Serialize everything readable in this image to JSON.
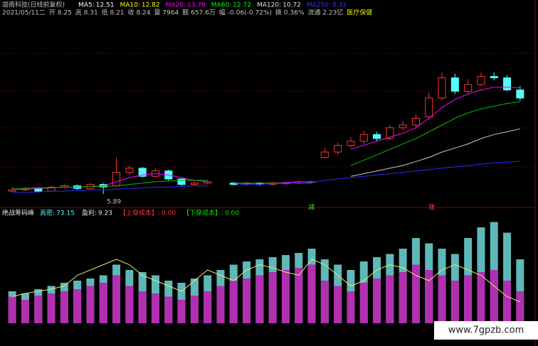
{
  "header": {
    "title": "迦南科技(日线前复权)",
    "ma": [
      {
        "label": "MA5:",
        "value": 12.51,
        "color": "#ffffff"
      },
      {
        "label": "MA10:",
        "value": 12.82,
        "color": "#ffff00"
      },
      {
        "label": "MA20:",
        "value": 13.76,
        "color": "#ff00ff"
      },
      {
        "label": "MA60:",
        "value": 12.72,
        "color": "#00ff00"
      },
      {
        "label": "MA120:",
        "value": 10.72,
        "color": "#e0e0e0"
      },
      {
        "label": "MA250:",
        "value": 8.32,
        "color": "#3030ff"
      }
    ]
  },
  "info": [
    "2021/05/11二",
    "开 8.25",
    "高 8.31",
    "低 8.21",
    "收 8.24",
    "量 7964",
    "额 657.6万",
    "幅 -0.06(-0.72%)",
    "换 0.36%",
    "流通 2.23亿",
    "医疗保健"
  ],
  "chart_data": [
    {
      "type": "candlestick",
      "up_color": "#ff3232",
      "down_color": "#54fcfc",
      "ylim": [
        5,
        15
      ],
      "open": [
        6.1,
        6.2,
        6.3,
        6.1,
        6.4,
        6.5,
        6.3,
        6.6,
        6.5,
        7.5,
        7.8,
        7.2,
        7.6,
        7.0,
        6.6,
        6.7,
        null,
        6.7,
        6.6,
        6.7,
        6.6,
        6.7,
        6.7,
        6.8,
        8.6,
        9.0,
        9.5,
        9.8,
        10.3,
        10.0,
        10.8,
        11.0,
        11.6,
        13.0,
        14.5,
        13.5,
        14.0,
        14.6,
        14.5,
        13.6
      ],
      "close": [
        6.2,
        6.3,
        6.1,
        6.4,
        6.5,
        6.3,
        6.6,
        6.4,
        7.5,
        7.8,
        7.2,
        7.6,
        7.0,
        6.6,
        6.7,
        6.8,
        null,
        6.6,
        6.7,
        6.6,
        6.7,
        6.7,
        6.8,
        6.8,
        9.0,
        9.5,
        9.8,
        10.3,
        10.0,
        10.8,
        11.0,
        11.5,
        13.0,
        14.5,
        13.5,
        14.0,
        14.6,
        14.5,
        13.6,
        13.0
      ],
      "high": [
        6.4,
        6.4,
        6.4,
        6.5,
        6.6,
        6.6,
        6.7,
        6.7,
        8.6,
        8.0,
        7.9,
        7.8,
        7.7,
        7.1,
        6.8,
        6.9,
        null,
        6.8,
        6.8,
        6.8,
        6.8,
        6.8,
        6.9,
        6.9,
        9.3,
        9.7,
        10.1,
        10.6,
        10.5,
        11.0,
        11.3,
        11.8,
        13.4,
        14.9,
        14.8,
        14.4,
        14.9,
        14.9,
        14.7,
        13.9
      ],
      "low": [
        6.0,
        6.1,
        6.0,
        6.0,
        6.3,
        6.2,
        6.2,
        5.89,
        6.4,
        7.3,
        7.1,
        7.1,
        6.9,
        6.5,
        6.5,
        6.6,
        null,
        6.5,
        6.5,
        6.5,
        6.5,
        6.6,
        6.6,
        6.7,
        8.5,
        8.8,
        9.3,
        9.6,
        9.8,
        9.9,
        10.6,
        10.8,
        11.4,
        12.8,
        13.3,
        13.3,
        13.9,
        14.3,
        13.5,
        12.8
      ],
      "series": [
        {
          "color": "#ff00ff",
          "values": [
            6.2,
            6.25,
            6.3,
            6.35,
            6.4,
            6.4,
            6.45,
            6.5,
            6.8,
            7.1,
            7.3,
            7.4,
            7.3,
            7.1,
            6.9,
            6.8,
            null,
            6.7,
            6.65,
            6.7,
            6.7,
            6.75,
            6.8,
            6.8,
            null,
            null,
            9.2,
            9.5,
            9.8,
            10.1,
            10.4,
            10.8,
            11.5,
            12.3,
            12.9,
            13.3,
            13.6,
            13.8,
            13.8,
            13.76
          ]
        },
        {
          "color": "#00c000",
          "values": [
            6.3,
            6.3,
            6.35,
            6.35,
            6.4,
            6.4,
            6.45,
            6.45,
            6.5,
            6.6,
            6.7,
            6.8,
            6.85,
            6.9,
            6.9,
            6.9,
            null,
            6.7,
            6.7,
            6.7,
            6.7,
            6.7,
            6.7,
            6.7,
            null,
            null,
            8.0,
            8.4,
            8.8,
            9.2,
            9.6,
            10.0,
            10.5,
            11.0,
            11.5,
            11.9,
            12.2,
            12.4,
            12.6,
            12.72
          ]
        },
        {
          "color": "#c8c8c8",
          "values": [
            null,
            null,
            null,
            null,
            null,
            null,
            null,
            null,
            null,
            null,
            null,
            null,
            null,
            null,
            null,
            null,
            null,
            null,
            null,
            null,
            null,
            null,
            null,
            null,
            null,
            null,
            7.2,
            7.4,
            7.6,
            7.8,
            8.0,
            8.3,
            8.6,
            9.0,
            9.3,
            9.6,
            10.0,
            10.3,
            10.5,
            10.72
          ]
        },
        {
          "color": "#2828ff",
          "values": [
            6.0,
            6.0,
            6.05,
            6.1,
            6.1,
            6.15,
            6.2,
            6.2,
            6.25,
            6.3,
            6.35,
            6.4,
            6.4,
            6.45,
            6.5,
            6.5,
            null,
            6.55,
            6.6,
            6.6,
            6.65,
            6.7,
            6.7,
            6.75,
            6.9,
            7.0,
            7.1,
            7.2,
            7.3,
            7.4,
            7.5,
            7.6,
            7.7,
            7.8,
            7.9,
            8.0,
            8.1,
            8.2,
            8.25,
            8.32
          ]
        }
      ],
      "annotations": [
        "5.89",
        "减",
        "涨"
      ]
    },
    {
      "type": "bar",
      "title": "绝战筹码峰",
      "ylim": [
        0,
        100
      ],
      "stats": [
        {
          "label": "高密:",
          "value": "73.15",
          "color": "#54fcfc"
        },
        {
          "label": "盈利:",
          "value": "9.23",
          "color": "#e0e0e0"
        },
        {
          "label": "【上穿成本】:",
          "value": "0.00",
          "color": "#ff3232"
        },
        {
          "label": "【下穿成本】:",
          "value": "0.00",
          "color": "#00e000"
        }
      ],
      "series": [
        {
          "type": "bar",
          "color": "#5fb8b8",
          "values": [
            30,
            28,
            32,
            35,
            38,
            40,
            42,
            45,
            55,
            50,
            48,
            45,
            40,
            38,
            42,
            45,
            50,
            55,
            58,
            60,
            62,
            64,
            66,
            70,
            60,
            55,
            50,
            58,
            62,
            65,
            70,
            80,
            75,
            70,
            65,
            80,
            90,
            95,
            85,
            60
          ]
        },
        {
          "type": "bar",
          "color": "#b030b0",
          "values": [
            25,
            22,
            26,
            28,
            30,
            32,
            35,
            38,
            45,
            35,
            30,
            28,
            25,
            22,
            26,
            30,
            35,
            40,
            42,
            45,
            48,
            50,
            52,
            55,
            40,
            35,
            30,
            38,
            42,
            45,
            48,
            55,
            50,
            45,
            40,
            45,
            48,
            50,
            40,
            30
          ]
        },
        {
          "type": "line",
          "color": "#e8e870",
          "values": [
            25,
            28,
            30,
            32,
            35,
            45,
            50,
            55,
            60,
            55,
            45,
            40,
            35,
            30,
            40,
            50,
            45,
            40,
            50,
            55,
            52,
            48,
            45,
            60,
            55,
            45,
            35,
            40,
            50,
            55,
            52,
            45,
            40,
            50,
            55,
            50,
            45,
            35,
            25,
            20
          ]
        }
      ]
    }
  ],
  "watermark": "www.7gpzb.com"
}
